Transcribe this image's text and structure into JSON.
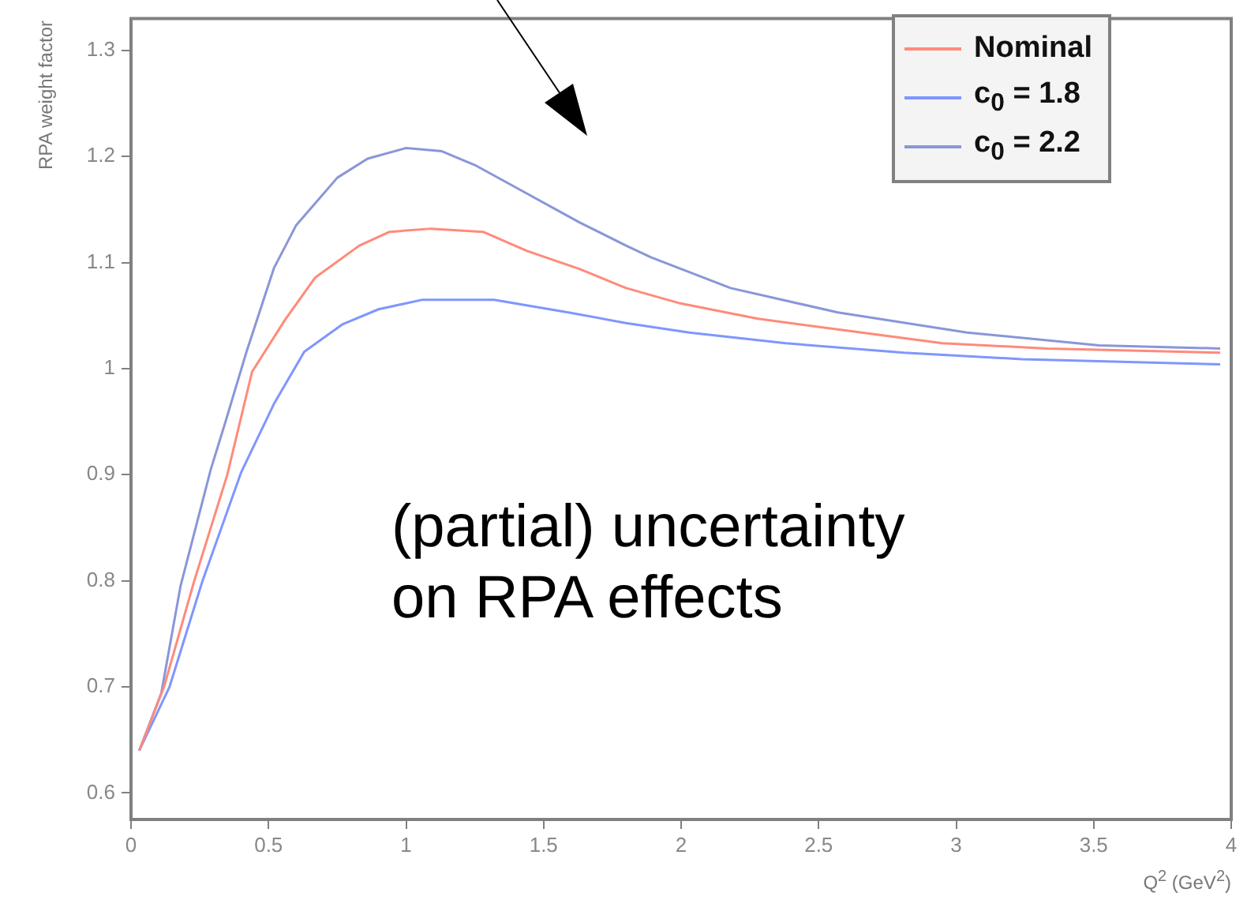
{
  "chart_data": {
    "type": "line",
    "xlabel": "Q$^{2}$ (GeV$^{2}$)",
    "ylabel": "RPA weight factor",
    "xlim": [
      0,
      4
    ],
    "ylim": [
      0.575,
      1.33
    ],
    "xticks": [
      0,
      0.5,
      1,
      1.5,
      2,
      2.5,
      3,
      3.5,
      4
    ],
    "yticks": [
      0.6,
      0.7,
      0.8,
      0.9,
      1,
      1.1,
      1.2,
      1.3
    ],
    "legend": "top right",
    "grid": false,
    "marker": "none",
    "line_style": "solid",
    "annotations": [
      "(partial) uncertainty\non RPA effects"
    ],
    "series": [
      {
        "name": "Nominal",
        "color": "#ff8a7a",
        "x": [
          0.03,
          0.12,
          0.23,
          0.35,
          0.44,
          0.56,
          0.67,
          0.83,
          0.94,
          1.09,
          1.28,
          1.44,
          1.63,
          1.8,
          1.99,
          2.28,
          2.57,
          2.95,
          3.33,
          3.96
        ],
        "values": [
          0.64,
          0.7,
          0.8,
          0.9,
          0.997,
          1.046,
          1.086,
          1.116,
          1.129,
          1.132,
          1.129,
          1.111,
          1.094,
          1.076,
          1.062,
          1.047,
          1.037,
          1.024,
          1.019,
          1.015
        ]
      },
      {
        "name": "c$_{0}$ = 1.8",
        "color": "#7f96ff",
        "x": [
          0.03,
          0.14,
          0.26,
          0.4,
          0.52,
          0.63,
          0.77,
          0.9,
          1.06,
          1.32,
          1.59,
          1.8,
          2.03,
          2.38,
          2.81,
          3.24,
          3.96
        ],
        "values": [
          0.64,
          0.7,
          0.8,
          0.902,
          0.967,
          1.016,
          1.042,
          1.056,
          1.065,
          1.065,
          1.053,
          1.043,
          1.034,
          1.024,
          1.015,
          1.009,
          1.004
        ]
      },
      {
        "name": "c$_{0}$ = 2.2",
        "color": "#8a96d8",
        "x": [
          0.03,
          0.11,
          0.18,
          0.29,
          0.34,
          0.42,
          0.52,
          0.6,
          0.75,
          0.86,
          1.0,
          1.13,
          1.25,
          1.44,
          1.63,
          1.8,
          1.89,
          2.18,
          2.57,
          3.04,
          3.52,
          3.96
        ],
        "values": [
          0.64,
          0.694,
          0.795,
          0.905,
          0.947,
          1.016,
          1.095,
          1.135,
          1.18,
          1.198,
          1.208,
          1.205,
          1.192,
          1.165,
          1.138,
          1.116,
          1.105,
          1.076,
          1.053,
          1.034,
          1.022,
          1.019
        ]
      }
    ]
  }
}
